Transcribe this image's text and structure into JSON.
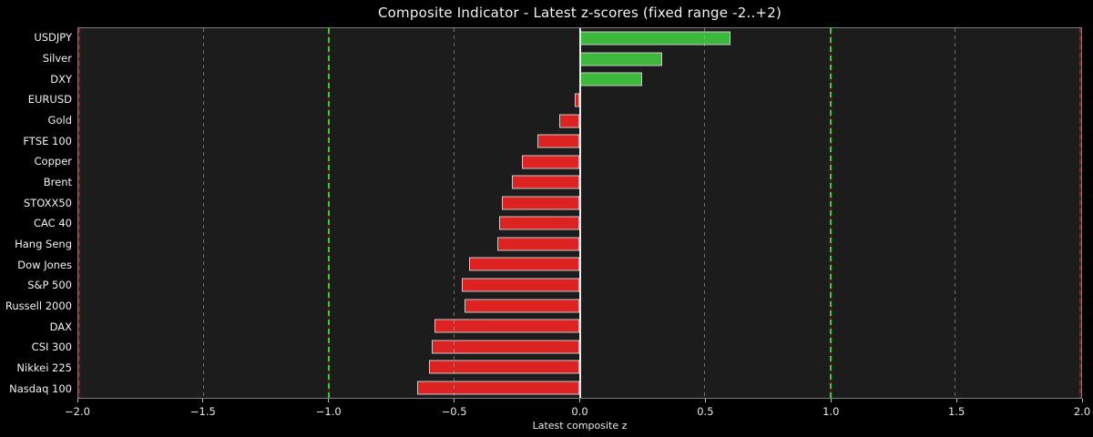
{
  "chart_data": {
    "type": "bar",
    "orientation": "horizontal",
    "title": "Composite Indicator - Latest z-scores (fixed range -2..+2)",
    "xlabel": "Latest composite z",
    "xlim": [
      -2,
      2
    ],
    "grid": "vertical dashed",
    "legend": null,
    "categories": [
      "USDJPY",
      "Silver",
      "DXY",
      "EURUSD",
      "Gold",
      "FTSE 100",
      "Copper",
      "Brent",
      "STOXX50",
      "CAC 40",
      "Hang Seng",
      "Dow Jones",
      "S&P 500",
      "Russell 2000",
      "DAX",
      "CSI 300",
      "Nikkei 225",
      "Nasdaq 100"
    ],
    "values": [
      0.6,
      0.33,
      0.25,
      -0.02,
      -0.08,
      -0.17,
      -0.23,
      -0.27,
      -0.31,
      -0.32,
      -0.33,
      -0.44,
      -0.47,
      -0.46,
      -0.58,
      -0.59,
      -0.6,
      -0.65
    ],
    "xticks": [
      {
        "value": -2.0,
        "label": "−2.0"
      },
      {
        "value": -1.5,
        "label": "−1.5"
      },
      {
        "value": -1.0,
        "label": "−1.0"
      },
      {
        "value": -0.5,
        "label": "−0.5"
      },
      {
        "value": 0.0,
        "label": "0.0"
      },
      {
        "value": 0.5,
        "label": "0.5"
      },
      {
        "value": 1.0,
        "label": "1.0"
      },
      {
        "value": 1.5,
        "label": "1.5"
      },
      {
        "value": 2.0,
        "label": "2.0"
      }
    ],
    "minor_gridlines": [
      -1.5,
      -0.5,
      0.5,
      1.5
    ],
    "threshold_lines": [
      -1.0,
      1.0
    ],
    "range_limit_lines": [
      -2.0,
      2.0
    ],
    "zero_line": 0.0,
    "colors": {
      "figure_bg": "#000000",
      "plot_bg": "#1c1c1c",
      "positive_bar": "#3cb83c",
      "negative_bar": "#dd2222",
      "bar_edge": "#c9c9c9",
      "zero_line": "#ebebeb",
      "threshold_line_green": "#2fd32f",
      "range_line_red": "#8b2525",
      "grid_line": "#b4b4b4",
      "text": "#f2f2f2"
    }
  }
}
